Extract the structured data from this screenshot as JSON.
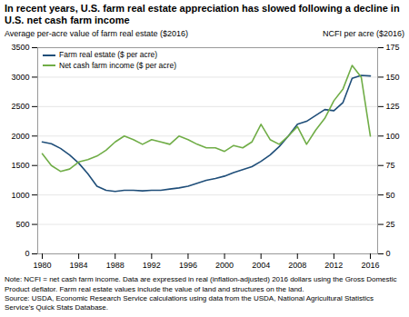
{
  "chart_data": {
    "type": "line",
    "title": "In recent years, U.S. farm real estate appreciation has slowed following a decline in U.S. net cash farm income",
    "ylabel": "Average per-acre value of farm real estate ($2016)",
    "y2label": "NCFI per acre ($2016)",
    "x": [
      1980,
      1981,
      1982,
      1983,
      1984,
      1985,
      1986,
      1987,
      1988,
      1989,
      1990,
      1991,
      1992,
      1993,
      1994,
      1995,
      1996,
      1997,
      1998,
      1999,
      2000,
      2001,
      2002,
      2003,
      2004,
      2005,
      2006,
      2007,
      2008,
      2009,
      2010,
      2011,
      2012,
      2013,
      2014,
      2015,
      2016
    ],
    "series": [
      {
        "name": "Farm real estate ($ per acre)",
        "color": "#1f4e79",
        "values": [
          1900,
          1870,
          1790,
          1680,
          1540,
          1360,
          1150,
          1080,
          1060,
          1080,
          1080,
          1070,
          1080,
          1080,
          1100,
          1120,
          1150,
          1200,
          1250,
          1280,
          1320,
          1380,
          1430,
          1480,
          1570,
          1680,
          1820,
          2000,
          2200,
          2250,
          2350,
          2450,
          2430,
          2570,
          2980,
          3030,
          3020
        ]
      },
      {
        "name": "Net cash farm income ($ per acre)",
        "color": "#70ad47",
        "axis": "y2",
        "values": [
          85,
          75,
          70,
          72,
          78,
          80,
          83,
          88,
          95,
          100,
          97,
          93,
          97,
          95,
          93,
          100,
          97,
          93,
          90,
          90,
          87,
          92,
          90,
          95,
          110,
          97,
          93,
          100,
          108,
          93,
          105,
          115,
          130,
          140,
          160,
          150,
          100
        ]
      }
    ],
    "xlim": [
      1979.5,
      2016.8
    ],
    "xticks": [
      1980,
      1984,
      1988,
      1992,
      1996,
      2000,
      2004,
      2008,
      2012,
      2016
    ],
    "ylim": [
      0,
      3500
    ],
    "yticks": [
      0,
      500,
      1000,
      1500,
      2000,
      2500,
      3000,
      3500
    ],
    "y2lim": [
      0,
      175
    ],
    "y2ticks": [
      0,
      25,
      50,
      75,
      100,
      125,
      150,
      175
    ],
    "grid": true,
    "legend": "upper left",
    "notes": [
      "Note: NCFI = net cash farm income. Data are expressed in real (inflation-adjusted) 2016 dollars using the Gross Domestic Product deflator. Farm real estate values include the value of land and structures on the land.",
      "Source: USDA, Economic Research Service calculations using data from the USDA, National Agricultural Statistics Service's Quick Stats Database."
    ]
  }
}
